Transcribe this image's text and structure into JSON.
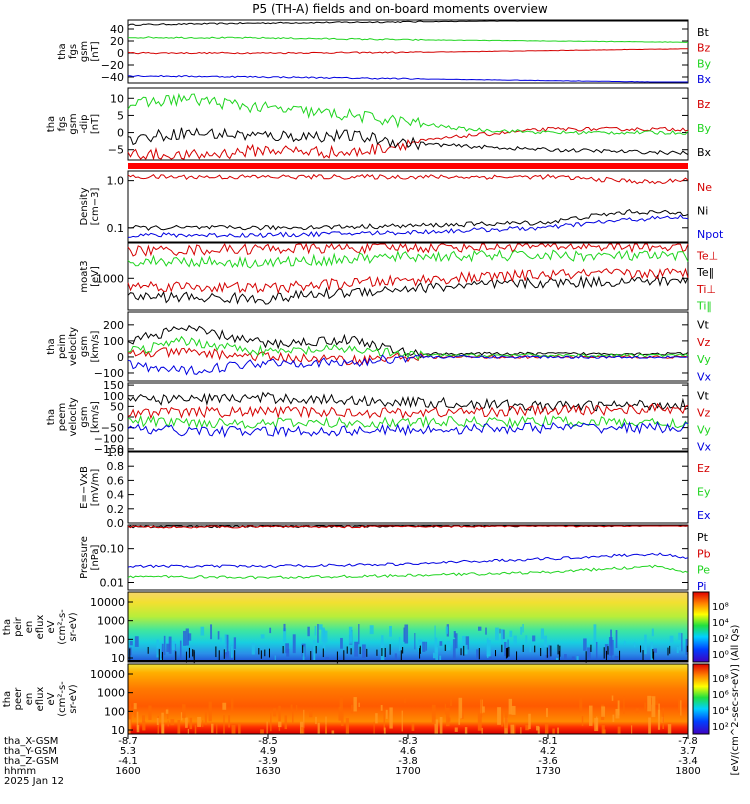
{
  "title": "P5 (TH-A) fields and on-board moments overview",
  "colors": {
    "black": "#000000",
    "red": "#d40000",
    "green": "#1fd41f",
    "blue": "#0000e0",
    "white": "#ffffff",
    "bar": "#ff0000"
  },
  "xaxis": {
    "ticks": [
      "16:00",
      "16:30",
      "17:00",
      "17:30",
      "18:00"
    ],
    "rows": [
      {
        "label": "tha_X-GSM",
        "values": [
          "-8.7",
          "-8.5",
          "-8.3",
          "-8.1",
          "-7.8"
        ]
      },
      {
        "label": "tha_Y-GSM",
        "values": [
          "5.3",
          "4.9",
          "4.6",
          "4.2",
          "3.7"
        ]
      },
      {
        "label": "tha_Z-GSM",
        "values": [
          "-4.1",
          "-3.9",
          "-3.8",
          "-3.6",
          "-3.4"
        ]
      },
      {
        "label": "hhmm",
        "values": [
          "1600",
          "1630",
          "1700",
          "1730",
          "1800"
        ]
      }
    ],
    "date": "2025 Jan 12"
  },
  "colorbar_label": "[eV/(cm^2-sec-sr-eV)] (All Qs)",
  "chart_data": [
    {
      "type": "line",
      "ylabel": [
        "tha",
        "fgs",
        "gsm",
        "[nT]"
      ],
      "ylim": [
        -50,
        55
      ],
      "yticks": [
        "40",
        "20",
        "0",
        "−20",
        "−40"
      ],
      "yticks_values": [
        40,
        20,
        0,
        -20,
        -40
      ],
      "series": [
        {
          "name": "Bt",
          "color": "#000000",
          "x": [
            16.0,
            16.5,
            17.0,
            17.5,
            18.0
          ],
          "values": [
            47,
            50,
            52,
            54,
            55
          ]
        },
        {
          "name": "Bz",
          "color": "#d40000",
          "x": [
            16.0,
            16.5,
            17.0,
            17.5,
            18.0
          ],
          "values": [
            0,
            0,
            1,
            4,
            7
          ]
        },
        {
          "name": "By",
          "color": "#1fd41f",
          "x": [
            16.0,
            16.5,
            17.0,
            17.5,
            18.0
          ],
          "values": [
            26,
            25,
            22,
            20,
            18
          ]
        },
        {
          "name": "Bx",
          "color": "#0000e0",
          "x": [
            16.0,
            16.5,
            17.0,
            17.5,
            18.0
          ],
          "values": [
            -38,
            -40,
            -43,
            -46,
            -49
          ]
        }
      ]
    },
    {
      "type": "line",
      "ylabel": [
        "tha",
        "fgs",
        "gsm",
        "-dip",
        "[nT]"
      ],
      "ylim": [
        -8,
        13
      ],
      "yticks": [
        "10",
        "5",
        "0",
        "−5"
      ],
      "yticks_values": [
        10,
        5,
        0,
        -5
      ],
      "series": [
        {
          "name": "Bz",
          "color": "#d40000",
          "x": [
            16.0,
            16.2,
            16.5,
            16.8,
            17.0,
            17.2,
            17.5,
            18.0
          ],
          "values": [
            -6,
            -7,
            -5,
            -6,
            -3,
            -1,
            1,
            1
          ]
        },
        {
          "name": "By",
          "color": "#1fd41f",
          "x": [
            16.0,
            16.2,
            16.5,
            16.8,
            17.0,
            17.2,
            17.5,
            18.0
          ],
          "values": [
            8,
            10,
            7,
            5,
            3,
            1,
            0,
            0
          ]
        },
        {
          "name": "Bx",
          "color": "#000000",
          "x": [
            16.0,
            16.2,
            16.5,
            16.8,
            17.0,
            17.2,
            17.5,
            18.0
          ],
          "values": [
            -2,
            0,
            -1,
            -1,
            -3,
            -4,
            -5,
            -6
          ]
        }
      ]
    },
    {
      "type": "line",
      "scale": "log",
      "ylabel": [
        "Density",
        "[cm−3]"
      ],
      "ylim": [
        0.05,
        1.6
      ],
      "yticks": [
        "1.0",
        "0.1"
      ],
      "yticks_values": [
        1.0,
        0.1
      ],
      "series": [
        {
          "name": "Ne",
          "color": "#d40000",
          "x": [
            16.0,
            16.5,
            17.0,
            17.5,
            17.9,
            18.0
          ],
          "values": [
            1.2,
            1.2,
            1.2,
            1.2,
            0.9,
            1.1
          ]
        },
        {
          "name": "Ni",
          "color": "#000000",
          "x": [
            16.0,
            16.5,
            17.0,
            17.5,
            17.8,
            18.0
          ],
          "values": [
            0.1,
            0.1,
            0.11,
            0.13,
            0.22,
            0.2
          ]
        },
        {
          "name": "Npot",
          "color": "#0000e0",
          "x": [
            16.0,
            16.5,
            17.0,
            17.5,
            17.8,
            18.0
          ],
          "values": [
            0.07,
            0.07,
            0.08,
            0.1,
            0.15,
            0.17
          ]
        }
      ]
    },
    {
      "type": "line",
      "scale": "log",
      "ylabel": [
        "moat3",
        "[eV]"
      ],
      "ylim": [
        200,
        6000
      ],
      "yticks": [
        "1000"
      ],
      "yticks_values": [
        1000
      ],
      "series": [
        {
          "name": "Te⊥",
          "color": "#d40000",
          "x": [
            16.0,
            16.5,
            17.0,
            17.5,
            18.0
          ],
          "values": [
            4000,
            4500,
            4800,
            5200,
            5000
          ]
        },
        {
          "name": "Te‖",
          "color": "#000000",
          "x": [
            16.0,
            16.5,
            17.0,
            17.5,
            18.0
          ],
          "values": [
            400,
            350,
            600,
            800,
            900
          ]
        },
        {
          "name": "Ti⊥",
          "color": "#d40000",
          "x": [
            16.0,
            16.5,
            17.0,
            17.5,
            18.0
          ],
          "values": [
            700,
            600,
            900,
            1200,
            1300
          ]
        },
        {
          "name": "Ti‖",
          "color": "#1fd41f",
          "x": [
            16.0,
            16.5,
            17.0,
            17.5,
            18.0
          ],
          "values": [
            2500,
            2200,
            3000,
            3200,
            3000
          ]
        }
      ]
    },
    {
      "type": "line",
      "ylabel": [
        "tha",
        "peim",
        "velocity",
        "gsm",
        "[km/s]"
      ],
      "ylim": [
        -150,
        280
      ],
      "yticks": [
        "200",
        "100",
        "0",
        "−100"
      ],
      "yticks_values": [
        200,
        100,
        0,
        -100
      ],
      "series": [
        {
          "name": "Vt",
          "color": "#000000",
          "x": [
            16.0,
            16.2,
            16.5,
            16.8,
            17.0,
            18.0
          ],
          "values": [
            100,
            180,
            80,
            110,
            20,
            20
          ]
        },
        {
          "name": "Vz",
          "color": "#d40000",
          "x": [
            16.0,
            16.2,
            16.5,
            16.8,
            17.0,
            18.0
          ],
          "values": [
            20,
            30,
            0,
            -20,
            0,
            0
          ]
        },
        {
          "name": "Vy",
          "color": "#1fd41f",
          "x": [
            16.0,
            16.2,
            16.5,
            16.8,
            17.0,
            18.0
          ],
          "values": [
            30,
            100,
            30,
            50,
            10,
            10
          ]
        },
        {
          "name": "Vx",
          "color": "#0000e0",
          "x": [
            16.0,
            16.2,
            16.5,
            16.8,
            17.0,
            18.0
          ],
          "values": [
            -50,
            -90,
            -30,
            -40,
            0,
            0
          ]
        }
      ]
    },
    {
      "type": "line",
      "ylabel": [
        "tha",
        "peem",
        "velocity",
        "gsm",
        "[km/s]"
      ],
      "ylim": [
        -160,
        160
      ],
      "yticks": [
        "150",
        "100",
        "50",
        "0",
        "−50",
        "−100",
        "−150"
      ],
      "yticks_values": [
        150,
        100,
        50,
        0,
        -50,
        -100,
        -150
      ],
      "series": [
        {
          "name": "Vt",
          "color": "#000000",
          "x": [
            16.0,
            16.5,
            17.0,
            17.5,
            18.0
          ],
          "values": [
            80,
            90,
            70,
            50,
            60
          ]
        },
        {
          "name": "Vz",
          "color": "#d40000",
          "x": [
            16.0,
            16.5,
            17.0,
            17.5,
            18.0
          ],
          "values": [
            20,
            25,
            20,
            30,
            40
          ]
        },
        {
          "name": "Vy",
          "color": "#1fd41f",
          "x": [
            16.0,
            16.5,
            17.0,
            17.5,
            18.0
          ],
          "values": [
            -20,
            -30,
            -25,
            -20,
            -30
          ]
        },
        {
          "name": "Vx",
          "color": "#0000e0",
          "x": [
            16.0,
            16.5,
            17.0,
            17.5,
            18.0
          ],
          "values": [
            -60,
            -70,
            -60,
            -50,
            -50
          ]
        }
      ]
    },
    {
      "type": "line",
      "ylabel": [
        "E=−VxB",
        "[mV/m]"
      ],
      "ylim": [
        0,
        1
      ],
      "yticks": [
        "1.0",
        "0.8",
        "0.6",
        "0.4",
        "0.2",
        "0.0"
      ],
      "yticks_values": [
        1.0,
        0.8,
        0.6,
        0.4,
        0.2,
        0.0
      ],
      "series": [
        {
          "name": "Ez",
          "color": "#d40000",
          "x": [],
          "values": []
        },
        {
          "name": "Ey",
          "color": "#1fd41f",
          "x": [],
          "values": []
        },
        {
          "name": "Ex",
          "color": "#0000e0",
          "x": [],
          "values": []
        }
      ]
    },
    {
      "type": "line",
      "scale": "log",
      "ylabel": [
        "Pressure",
        "[nPa]"
      ],
      "ylim": [
        0.006,
        0.5
      ],
      "yticks": [
        "0.10",
        "0.01"
      ],
      "yticks_values": [
        0.1,
        0.01
      ],
      "series": [
        {
          "name": "Pt",
          "color": "#000000",
          "x": [
            16.0,
            17.0,
            18.0
          ],
          "values": [
            0.45,
            0.47,
            0.5
          ]
        },
        {
          "name": "Pb",
          "color": "#d40000",
          "x": [
            16.0,
            17.0,
            18.0
          ],
          "values": [
            0.44,
            0.46,
            0.49
          ]
        },
        {
          "name": "Pe",
          "color": "#1fd41f",
          "x": [
            16.0,
            16.5,
            17.0,
            17.5,
            17.9,
            18.0
          ],
          "values": [
            0.015,
            0.014,
            0.016,
            0.02,
            0.03,
            0.02
          ]
        },
        {
          "name": "Pi",
          "color": "#0000e0",
          "x": [
            16.0,
            16.5,
            17.0,
            17.5,
            17.9,
            18.0
          ],
          "values": [
            0.03,
            0.03,
            0.035,
            0.05,
            0.07,
            0.05
          ]
        }
      ]
    },
    {
      "type": "heatmap",
      "ylabel": [
        "tha",
        "peir",
        "en",
        "eflux",
        "eV",
        "(cm²-s-",
        "sr-eV)"
      ],
      "yticks": [
        "10000",
        "1000",
        "100",
        "10"
      ],
      "colorbar_ticks": [
        "10⁸",
        "10⁴",
        "10²",
        "10⁰"
      ]
    },
    {
      "type": "heatmap",
      "ylabel": [
        "tha",
        "peer",
        "en",
        "eflux",
        "eV",
        "(cm²-s-",
        "sr-eV)"
      ],
      "yticks": [
        "10000",
        "1000",
        "100",
        "10"
      ],
      "colorbar_ticks": [
        "10⁸",
        "10⁶",
        "10⁴",
        "10²"
      ]
    }
  ]
}
